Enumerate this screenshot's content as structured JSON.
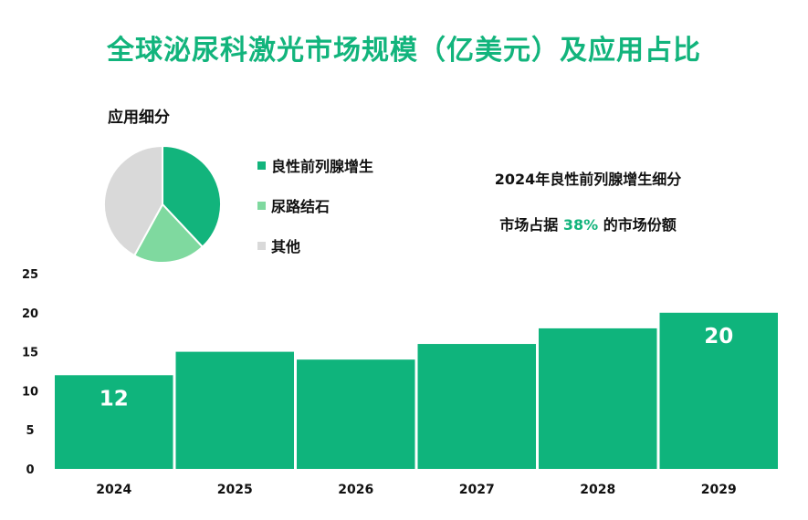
{
  "title": "全球泌尿科激光市场规模（亿美元）及应用占比",
  "colors": {
    "brand": "#12b47c",
    "bar": "#0fb47c",
    "pie_bph": "#12b47c",
    "pie_stone": "#7fd99f",
    "pie_other": "#d9d9d9"
  },
  "pie": {
    "title": "应用细分",
    "slices": [
      {
        "label": "良性前列腺增生",
        "value": 38
      },
      {
        "label": "尿路结石",
        "value": 20
      },
      {
        "label": "其他",
        "value": 42
      }
    ]
  },
  "highlight": {
    "line1": "2024年良性前列腺增生细分",
    "prefix": "市场占据",
    "percent": "38%",
    "suffix": "的市场份额"
  },
  "chart_data": {
    "type": "bar",
    "categories": [
      "2024",
      "2025",
      "2026",
      "2027",
      "2028",
      "2029"
    ],
    "values": [
      12,
      15,
      14,
      16,
      18,
      20
    ],
    "data_labels": [
      "12",
      "",
      "",
      "",
      "",
      "20"
    ],
    "ylim": [
      0,
      25
    ],
    "yticks": [
      0,
      5,
      10,
      15,
      20,
      25
    ],
    "title": "全球泌尿科激光市场规模（亿美元）",
    "xlabel": "",
    "ylabel": ""
  }
}
